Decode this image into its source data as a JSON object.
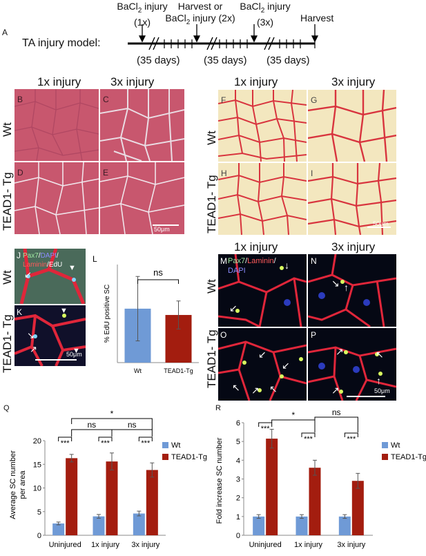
{
  "panelA": {
    "letter": "A",
    "model_label": "TA injury model:",
    "events": [
      {
        "line1": "BaCl",
        "sub": "2",
        "rest": " injury",
        "line2": "(1x)"
      },
      {
        "line1": "Harvest or",
        "line2a": "BaCl",
        "sub": "2",
        "line2b": " injury (2x)"
      },
      {
        "line1": "BaCl",
        "sub": "2",
        "rest": " injury",
        "line2": "(3x)"
      },
      {
        "line1": "Harvest"
      }
    ],
    "intervals": [
      "(35 days)",
      "(35 days)",
      "(35 days)"
    ]
  },
  "histology": {
    "he": {
      "col_heads": [
        "1x injury",
        "3x injury"
      ],
      "row_labels": [
        "Wt",
        "TEAD1- Tg"
      ],
      "letters": [
        "B",
        "C",
        "D",
        "E"
      ],
      "scale": "50μm"
    },
    "sr": {
      "col_heads": [
        "1x injury",
        "3x injury"
      ],
      "row_labels": [
        "Wt",
        "TEAD1- Tg"
      ],
      "letters": [
        "F",
        "G",
        "H",
        "I"
      ],
      "scale": "50μm"
    }
  },
  "panelJK": {
    "letters": [
      "J",
      "K"
    ],
    "row_labels": [
      "Wt",
      "TEAD1- Tg"
    ],
    "stain": {
      "pax7": "Pax7",
      "sep1": "/",
      "dapi": "DAPI",
      "sep2": "/",
      "laminin": "Laminin",
      "sep3": "/",
      "edu": "EdU"
    },
    "scale": "50μm"
  },
  "panelMP": {
    "col_heads": [
      "1x injury",
      "3x injury"
    ],
    "row_labels": [
      "Wt",
      "TEAD1- Tg"
    ],
    "letters": [
      "M",
      "N",
      "O",
      "P"
    ],
    "stain": {
      "pax7": "Pax7",
      "sep1": "/",
      "laminin": "Laminin",
      "sep2": "/",
      "dapi": "DAPI"
    },
    "scale": "50μm"
  },
  "colors": {
    "wt": "#6f9ad6",
    "tg": "#a31d0f",
    "he_bg": "#c8576e",
    "sr_bg": "#f3e7bf",
    "laminin": "#e0263a"
  },
  "chart_data": [
    {
      "panel": "L",
      "type": "bar",
      "ylabel": "% EdU positive SC",
      "categories": [
        "Wt",
        "TEAD1-Tg"
      ],
      "values": [
        38.5,
        34
      ],
      "errors": [
        23,
        10
      ],
      "ylim": [
        0,
        70
      ],
      "significance": "ns"
    },
    {
      "panel": "Q",
      "type": "bar",
      "ylabel": "Average SC number per area",
      "ylabel_lines": [
        "Average SC number",
        "per area"
      ],
      "categories": [
        "Uninjured",
        "1x injury",
        "3x injury"
      ],
      "series": [
        {
          "name": "Wt",
          "values": [
            2.5,
            4.0,
            4.6
          ],
          "errors": [
            0.3,
            0.4,
            0.5
          ]
        },
        {
          "name": "TEAD1-Tg",
          "values": [
            16.3,
            15.6,
            13.8
          ],
          "errors": [
            0.8,
            1.8,
            1.5
          ]
        }
      ],
      "ylim": [
        0,
        20
      ],
      "yticks": [
        0,
        5,
        10,
        15,
        20
      ],
      "significance": [
        "***",
        "***",
        "***",
        "ns",
        "ns",
        "*"
      ],
      "legend": "right"
    },
    {
      "panel": "R",
      "type": "bar",
      "ylabel": "Fold increase SC number",
      "categories": [
        "Uninjured",
        "1x injury",
        "3x injury"
      ],
      "series": [
        {
          "name": "Wt",
          "values": [
            1.0,
            1.0,
            1.0
          ],
          "errors": [
            0.1,
            0.1,
            0.1
          ]
        },
        {
          "name": "TEAD1-Tg",
          "values": [
            5.15,
            3.6,
            2.9
          ],
          "errors": [
            0.5,
            0.4,
            0.4
          ]
        }
      ],
      "ylim": [
        0,
        6
      ],
      "yticks": [
        0,
        1,
        2,
        3,
        4,
        5,
        6
      ],
      "significance": [
        "***",
        "***",
        "***",
        "*",
        "ns"
      ],
      "legend": "right"
    }
  ]
}
